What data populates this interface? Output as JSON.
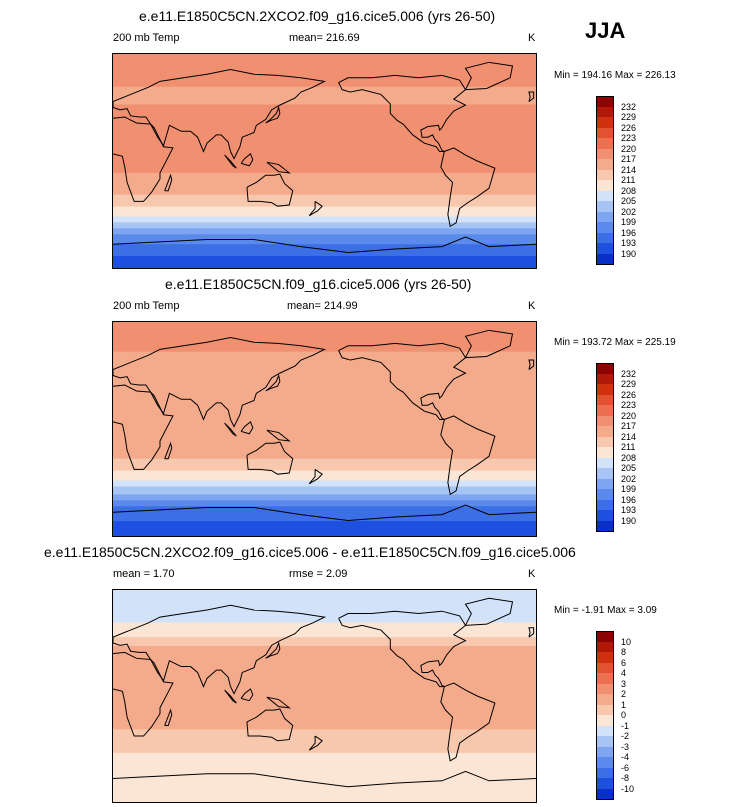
{
  "season": "JJA",
  "panels": [
    {
      "title": "e.e11.E1850C5CN.2XCO2.f09_g16.cice5.006 (yrs 26-50)",
      "left_label": "200 mb Temp",
      "center_label": "mean= 216.69",
      "units": "K",
      "minmax": "Min = 194.16 Max = 226.13"
    },
    {
      "title": "e.e11.E1850C5CN.f09_g16.cice5.006 (yrs 26-50)",
      "left_label": "200 mb Temp",
      "center_label": "mean= 214.99",
      "units": "K",
      "minmax": "Min = 193.72 Max = 225.19"
    },
    {
      "title": "e.e11.E1850C5CN.2XCO2.f09_g16.cice5.006 - e.e11.E1850C5CN.f09_g16.cice5.006",
      "left_label": "mean =  1.70",
      "center_label": "rmse =  2.09",
      "units": "K",
      "minmax": "Min = -1.91 Max =  3.09"
    }
  ],
  "colors": {
    "abs_scale": [
      "#08088a",
      "#0a2ec8",
      "#1e50e0",
      "#3c6ee6",
      "#5a8aec",
      "#7ea6f0",
      "#a6c4f4",
      "#d2e2f8",
      "#fbe6d6",
      "#f8c8ae",
      "#f4ab8c",
      "#f09070",
      "#ea7050",
      "#e25232",
      "#d03010",
      "#b01808",
      "#8a0404"
    ],
    "diff_scale": [
      "#08088a",
      "#0a2ec8",
      "#1e50e0",
      "#3c6ee6",
      "#5a8aec",
      "#7ea6f0",
      "#a6c4f4",
      "#d2e2f8",
      "#fbe6d6",
      "#f8c8ae",
      "#f4ab8c",
      "#f09070",
      "#ea7050",
      "#e25232",
      "#d03010",
      "#b01808",
      "#8a0404"
    ]
  },
  "chart_data": [
    {
      "type": "heatmap",
      "title": "e.e11.E1850C5CN.2XCO2.f09_g16.cice5.006 (yrs 26-50)",
      "variable": "200 mb Temp",
      "units": "K",
      "mean": 216.69,
      "min": 194.16,
      "max": 226.13,
      "colorbar_levels": [
        "232",
        "229",
        "226",
        "223",
        "220",
        "217",
        "214",
        "211",
        "208",
        "205",
        "202",
        "199",
        "196",
        "193",
        "190"
      ],
      "lat_profile": [
        {
          "lat": 90,
          "value": 223
        },
        {
          "lat": 70,
          "value": 222
        },
        {
          "lat": 55,
          "value": 218
        },
        {
          "lat": 40,
          "value": 222
        },
        {
          "lat": 25,
          "value": 223
        },
        {
          "lat": 10,
          "value": 221
        },
        {
          "lat": -10,
          "value": 220
        },
        {
          "lat": -25,
          "value": 218
        },
        {
          "lat": -35,
          "value": 215
        },
        {
          "lat": -45,
          "value": 212
        },
        {
          "lat": -55,
          "value": 206
        },
        {
          "lat": -65,
          "value": 200
        },
        {
          "lat": -80,
          "value": 196
        },
        {
          "lat": -90,
          "value": 194
        }
      ]
    },
    {
      "type": "heatmap",
      "title": "e.e11.E1850C5CN.f09_g16.cice5.006 (yrs 26-50)",
      "variable": "200 mb Temp",
      "units": "K",
      "mean": 214.99,
      "min": 193.72,
      "max": 225.19,
      "colorbar_levels": [
        "232",
        "229",
        "226",
        "223",
        "220",
        "217",
        "214",
        "211",
        "208",
        "205",
        "202",
        "199",
        "196",
        "193",
        "190"
      ],
      "lat_profile": [
        {
          "lat": 90,
          "value": 223
        },
        {
          "lat": 70,
          "value": 221
        },
        {
          "lat": 55,
          "value": 217
        },
        {
          "lat": 40,
          "value": 220
        },
        {
          "lat": 25,
          "value": 219
        },
        {
          "lat": 10,
          "value": 218
        },
        {
          "lat": -10,
          "value": 218
        },
        {
          "lat": -25,
          "value": 217
        },
        {
          "lat": -35,
          "value": 214
        },
        {
          "lat": -45,
          "value": 210
        },
        {
          "lat": -55,
          "value": 205
        },
        {
          "lat": -65,
          "value": 199
        },
        {
          "lat": -80,
          "value": 195
        },
        {
          "lat": -90,
          "value": 194
        }
      ]
    },
    {
      "type": "heatmap",
      "title": "e.e11.E1850C5CN.2XCO2.f09_g16.cice5.006 - e.e11.E1850C5CN.f09_g16.cice5.006",
      "units": "K",
      "mean": 1.7,
      "rmse": 2.09,
      "min": -1.91,
      "max": 3.09,
      "colorbar_levels": [
        "10",
        "8",
        "6",
        "4",
        "3",
        "2",
        "1",
        "0",
        "-1",
        "-2",
        "-3",
        "-4",
        "-6",
        "-8",
        "-10"
      ],
      "lat_profile": [
        {
          "lat": 90,
          "value": -0.8
        },
        {
          "lat": 70,
          "value": -0.5
        },
        {
          "lat": 55,
          "value": 0.5
        },
        {
          "lat": 40,
          "value": 2.3
        },
        {
          "lat": 25,
          "value": 2.6
        },
        {
          "lat": 10,
          "value": 2.5
        },
        {
          "lat": -10,
          "value": 2.2
        },
        {
          "lat": -25,
          "value": 2.2
        },
        {
          "lat": -35,
          "value": 1.5
        },
        {
          "lat": -45,
          "value": 1.2
        },
        {
          "lat": -55,
          "value": 0.6
        },
        {
          "lat": -65,
          "value": 0.4
        },
        {
          "lat": -80,
          "value": 0.3
        },
        {
          "lat": -90,
          "value": 0.2
        }
      ]
    }
  ]
}
